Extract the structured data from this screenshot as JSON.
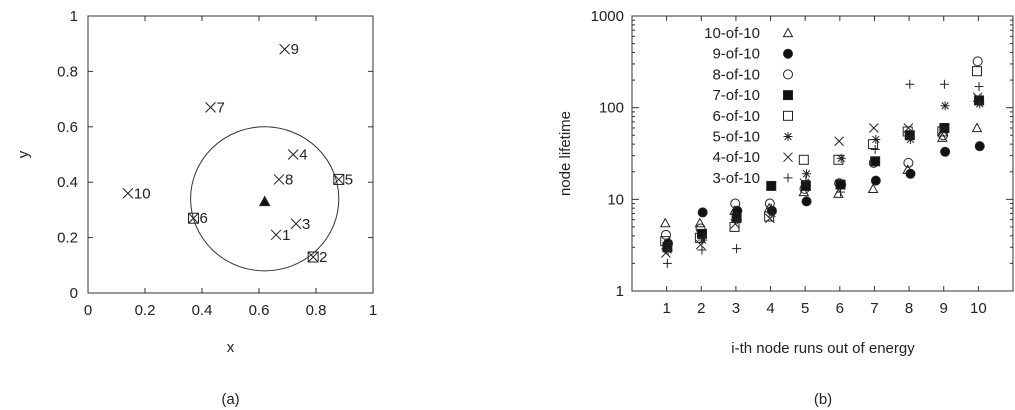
{
  "chart_data": [
    {
      "type": "scatter",
      "caption": "(a)",
      "xlabel": "x",
      "ylabel": "y",
      "xlim": [
        0,
        1
      ],
      "ylim": [
        0,
        1
      ],
      "xticks": [
        "0",
        "0.2",
        "0.4",
        "0.6",
        "0.8",
        "1"
      ],
      "yticks": [
        "0",
        "0.2",
        "0.4",
        "0.6",
        "0.8",
        "1"
      ],
      "grid": false,
      "points": [
        {
          "label": "1",
          "x": 0.66,
          "y": 0.21,
          "marker": "x"
        },
        {
          "label": "2",
          "x": 0.79,
          "y": 0.13,
          "marker": "boxx"
        },
        {
          "label": "3",
          "x": 0.73,
          "y": 0.25,
          "marker": "x"
        },
        {
          "label": "4",
          "x": 0.72,
          "y": 0.5,
          "marker": "x"
        },
        {
          "label": "5",
          "x": 0.88,
          "y": 0.41,
          "marker": "boxx"
        },
        {
          "label": "6",
          "x": 0.37,
          "y": 0.27,
          "marker": "boxx"
        },
        {
          "label": "7",
          "x": 0.43,
          "y": 0.67,
          "marker": "x"
        },
        {
          "label": "8",
          "x": 0.67,
          "y": 0.41,
          "marker": "x"
        },
        {
          "label": "9",
          "x": 0.69,
          "y": 0.88,
          "marker": "x"
        },
        {
          "label": "10",
          "x": 0.14,
          "y": 0.36,
          "marker": "x"
        }
      ],
      "center": {
        "x": 0.62,
        "y": 0.33,
        "marker": "triangle-filled"
      },
      "circle": {
        "cx": 0.62,
        "cy": 0.34,
        "r": 0.26
      }
    },
    {
      "type": "scatter",
      "caption": "(b)",
      "xlabel": "i-th node runs out of energy",
      "ylabel": "node lifetime",
      "yscale": "log",
      "xlim": [
        0,
        11
      ],
      "ylim": [
        1,
        1000
      ],
      "xticks": [
        "1",
        "2",
        "3",
        "4",
        "5",
        "6",
        "7",
        "8",
        "9",
        "10"
      ],
      "yticks": [
        "1",
        "10",
        "100",
        "1000"
      ],
      "grid": false,
      "legend": "top-left",
      "categories": [
        1,
        2,
        3,
        4,
        5,
        6,
        7,
        8,
        9,
        10
      ],
      "series": [
        {
          "name": "10-of-10",
          "marker": "triangle-open",
          "x": [
            1,
            2,
            3,
            4,
            5,
            6,
            7,
            8,
            9,
            10
          ],
          "values": [
            5.5,
            5.5,
            7.5,
            8,
            12,
            11.5,
            13,
            21,
            47,
            60
          ]
        },
        {
          "name": "9-of-10",
          "marker": "circle-filled",
          "x": [
            1,
            2,
            3,
            4,
            5,
            6,
            7,
            8,
            9,
            10
          ],
          "values": [
            3.3,
            7.2,
            7.5,
            7.5,
            9.5,
            14.5,
            16,
            19,
            33,
            38
          ]
        },
        {
          "name": "8-of-10",
          "marker": "circle-open",
          "x": [
            1,
            2,
            3,
            4,
            5,
            6,
            7,
            8,
            9,
            10
          ],
          "values": [
            4.1,
            4.8,
            9,
            9,
            13,
            15,
            25,
            25,
            50,
            320
          ]
        },
        {
          "name": "7-of-10",
          "marker": "square-filled",
          "x": [
            1,
            2,
            3,
            4,
            5,
            6,
            7,
            8,
            9,
            10
          ],
          "values": [
            3,
            4.2,
            6.3,
            14,
            14,
            14.5,
            26,
            50,
            60,
            120
          ]
        },
        {
          "name": "6-of-10",
          "marker": "square-open",
          "x": [
            1,
            2,
            3,
            4,
            5,
            6,
            7,
            8,
            9,
            10
          ],
          "values": [
            3.5,
            3.8,
            5,
            6.5,
            27,
            27,
            40,
            55,
            55,
            250
          ]
        },
        {
          "name": "5-of-10",
          "marker": "star",
          "x": [
            1,
            2,
            3,
            4,
            5,
            6,
            7,
            8,
            9,
            10
          ],
          "values": [
            2.8,
            3.6,
            6,
            7,
            19,
            28,
            45,
            45,
            105,
            110
          ]
        },
        {
          "name": "4-of-10",
          "marker": "x",
          "x": [
            1,
            2,
            3,
            4,
            5,
            6,
            7,
            8,
            9,
            10
          ],
          "values": [
            2.6,
            3.2,
            5.4,
            6.2,
            15,
            43,
            60,
            60,
            56,
            130
          ]
        },
        {
          "name": "3-of-10",
          "marker": "plus",
          "x": [
            1,
            2,
            3,
            4,
            5,
            6,
            7,
            8,
            9,
            10
          ],
          "values": [
            2,
            2.8,
            2.9,
            8,
            16,
            12,
            35,
            180,
            180,
            170
          ]
        }
      ]
    }
  ]
}
